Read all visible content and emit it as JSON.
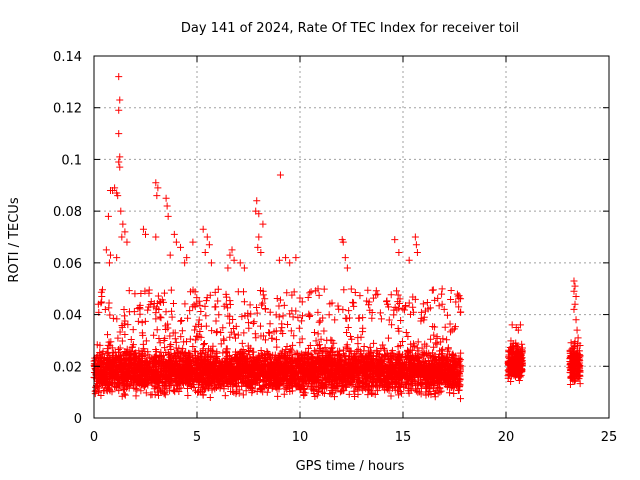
{
  "chart_data": {
    "type": "scatter",
    "title": "Day 141 of 2024, Rate Of TEC Index for receiver toil",
    "xlabel": "GPS time / hours",
    "ylabel": "ROTI / TECUs",
    "xlim": [
      0,
      25
    ],
    "ylim": [
      0,
      0.14
    ],
    "xticks": [
      0,
      5,
      10,
      15,
      20,
      25
    ],
    "xtick_labels": [
      "0",
      "5",
      "10",
      "15",
      "20",
      "25"
    ],
    "yticks": [
      0,
      0.02,
      0.04,
      0.06,
      0.08,
      0.1,
      0.12,
      0.14
    ],
    "ytick_labels": [
      "0",
      "0.02",
      "0.04",
      "0.06",
      "0.08",
      "0.1",
      "0.12",
      "0.14"
    ],
    "grid": true,
    "marker": "plus",
    "series": [
      {
        "name": "ROTI",
        "color": "#ff0000",
        "points": [
          [
            1.2,
            0.132
          ],
          [
            1.25,
            0.123
          ],
          [
            1.2,
            0.119
          ],
          [
            1.2,
            0.11
          ],
          [
            1.25,
            0.101
          ],
          [
            1.2,
            0.099
          ],
          [
            1.25,
            0.097
          ],
          [
            1.0,
            0.089
          ],
          [
            0.9,
            0.088
          ],
          [
            1.1,
            0.087
          ],
          [
            0.8,
            0.088
          ],
          [
            1.15,
            0.086
          ],
          [
            3.0,
            0.091
          ],
          [
            3.1,
            0.089
          ],
          [
            3.05,
            0.086
          ],
          [
            3.5,
            0.085
          ],
          [
            3.55,
            0.082
          ],
          [
            3.6,
            0.078
          ],
          [
            1.3,
            0.08
          ],
          [
            1.4,
            0.075
          ],
          [
            1.5,
            0.072
          ],
          [
            1.35,
            0.07
          ],
          [
            0.7,
            0.078
          ],
          [
            1.6,
            0.068
          ],
          [
            2.4,
            0.073
          ],
          [
            2.5,
            0.071
          ],
          [
            3.0,
            0.07
          ],
          [
            0.6,
            0.065
          ],
          [
            0.8,
            0.063
          ],
          [
            0.75,
            0.06
          ],
          [
            1.1,
            0.062
          ],
          [
            9.05,
            0.094
          ],
          [
            7.9,
            0.084
          ],
          [
            7.85,
            0.08
          ],
          [
            8.0,
            0.079
          ],
          [
            8.2,
            0.075
          ],
          [
            8.0,
            0.07
          ],
          [
            7.95,
            0.066
          ],
          [
            8.1,
            0.064
          ],
          [
            5.3,
            0.073
          ],
          [
            5.5,
            0.07
          ],
          [
            5.6,
            0.067
          ],
          [
            5.4,
            0.064
          ],
          [
            5.7,
            0.06
          ],
          [
            4.8,
            0.068
          ],
          [
            3.9,
            0.071
          ],
          [
            4.0,
            0.068
          ],
          [
            4.2,
            0.066
          ],
          [
            4.5,
            0.062
          ],
          [
            4.4,
            0.06
          ],
          [
            3.7,
            0.063
          ],
          [
            6.6,
            0.063
          ],
          [
            6.7,
            0.065
          ],
          [
            6.8,
            0.061
          ],
          [
            6.5,
            0.058
          ],
          [
            7.1,
            0.06
          ],
          [
            7.3,
            0.058
          ],
          [
            9.3,
            0.062
          ],
          [
            9.5,
            0.06
          ],
          [
            9.8,
            0.062
          ],
          [
            9.0,
            0.061
          ],
          [
            12.05,
            0.069
          ],
          [
            12.1,
            0.068
          ],
          [
            12.2,
            0.062
          ],
          [
            12.3,
            0.058
          ],
          [
            14.6,
            0.069
          ],
          [
            14.8,
            0.064
          ],
          [
            15.6,
            0.07
          ],
          [
            15.65,
            0.067
          ],
          [
            15.7,
            0.064
          ],
          [
            15.3,
            0.061
          ],
          [
            14.2,
            0.045
          ],
          [
            14.25,
            0.044
          ],
          [
            14.3,
            0.043
          ],
          [
            17.7,
            0.043
          ],
          [
            17.8,
            0.041
          ],
          [
            16.9,
            0.044
          ],
          [
            17.0,
            0.042
          ],
          [
            20.3,
            0.036
          ],
          [
            20.5,
            0.035
          ],
          [
            20.6,
            0.034
          ],
          [
            20.7,
            0.036
          ],
          [
            23.3,
            0.053
          ],
          [
            23.35,
            0.051
          ],
          [
            23.3,
            0.049
          ],
          [
            23.4,
            0.047
          ],
          [
            23.35,
            0.044
          ],
          [
            23.3,
            0.042
          ],
          [
            23.4,
            0.038
          ],
          [
            23.45,
            0.034
          ],
          [
            23.5,
            0.031
          ],
          [
            23.3,
            0.027
          ]
        ]
      }
    ],
    "dense_bands": [
      {
        "x_range": [
          0.0,
          17.8
        ],
        "y_center": 0.018,
        "y_spread": 0.011,
        "y_max_floor": 0.05
      },
      {
        "x_range": [
          20.1,
          20.8
        ],
        "y_center": 0.021,
        "y_spread": 0.008,
        "y_max_floor": 0.03
      },
      {
        "x_range": [
          23.1,
          23.6
        ],
        "y_center": 0.02,
        "y_spread": 0.009,
        "y_max_floor": 0.03
      }
    ]
  }
}
